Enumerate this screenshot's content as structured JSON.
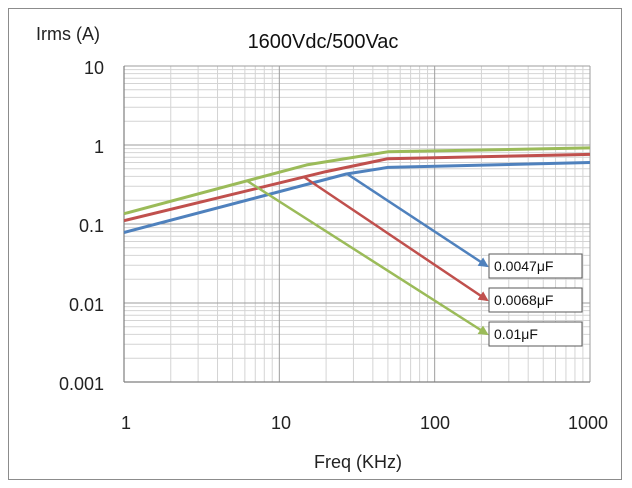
{
  "chart_data": {
    "type": "line",
    "title": "1600Vdc/500Vac",
    "xlabel": "Freq (KHz)",
    "ylabel": "Irms (A)",
    "xscale": "log",
    "yscale": "log",
    "xlim": [
      1,
      1000
    ],
    "ylim": [
      0.001,
      10
    ],
    "x_ticks": [
      "1",
      "10",
      "100",
      "1000"
    ],
    "y_ticks": [
      "10",
      "1",
      "0.1",
      "0.01",
      "0.001"
    ],
    "grid": true,
    "legend_position": "bottom-right",
    "series": [
      {
        "name": "0.0047μF",
        "color": "#4f81bd",
        "points": [
          [
            1,
            0.078
          ],
          [
            27,
            0.43
          ],
          [
            50,
            0.52
          ],
          [
            1000,
            0.6
          ]
        ]
      },
      {
        "name": "0.0068μF",
        "color": "#c0504d",
        "points": [
          [
            1,
            0.11
          ],
          [
            20,
            0.46
          ],
          [
            50,
            0.67
          ],
          [
            1000,
            0.76
          ]
        ]
      },
      {
        "name": "0.01μF",
        "color": "#9bbb59",
        "points": [
          [
            1,
            0.135
          ],
          [
            15,
            0.56
          ],
          [
            50,
            0.82
          ],
          [
            1000,
            0.92
          ]
        ]
      }
    ]
  }
}
